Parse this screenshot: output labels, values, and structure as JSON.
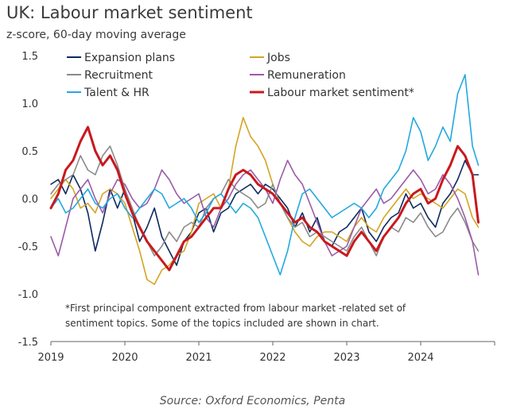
{
  "title": "UK: Labour market sentiment",
  "subtitle": "z-score, 60-day moving average",
  "source": "Source: Oxford Economics, Penta",
  "chart_data": {
    "type": "line",
    "ylim": [
      -1.5,
      1.5
    ],
    "yticks": [
      1.5,
      1.0,
      0.5,
      0.0,
      -0.5,
      -1.0,
      -1.5
    ],
    "ytick_labels": [
      "1.5",
      "1.0",
      "0.5",
      "0.0",
      "-0.5",
      "-1.0",
      "-1.5"
    ],
    "xlim": [
      2019.0,
      2025.0
    ],
    "xticks": [
      2019,
      2020,
      2021,
      2022,
      2023,
      2024
    ],
    "xtick_labels": [
      "2019",
      "2020",
      "2021",
      "2022",
      "2023",
      "2024"
    ],
    "grid": false,
    "legend_placement": "top",
    "note_lines": [
      "*First principal component extracted from labour market  -related set of",
      "sentiment topics. Some of the  topics included are shown in chart."
    ],
    "series": [
      {
        "name": "Expansion plans",
        "color": "#0b2a5e",
        "x": [
          2019.0,
          2019.1,
          2019.2,
          2019.3,
          2019.4,
          2019.5,
          2019.6,
          2019.7,
          2019.8,
          2019.9,
          2020.0,
          2020.1,
          2020.2,
          2020.3,
          2020.4,
          2020.5,
          2020.6,
          2020.7,
          2020.8,
          2020.9,
          2021.0,
          2021.1,
          2021.2,
          2021.3,
          2021.4,
          2021.5,
          2021.6,
          2021.7,
          2021.8,
          2021.9,
          2022.0,
          2022.1,
          2022.2,
          2022.3,
          2022.4,
          2022.5,
          2022.6,
          2022.7,
          2022.8,
          2022.9,
          2023.0,
          2023.1,
          2023.2,
          2023.3,
          2023.4,
          2023.5,
          2023.6,
          2023.7,
          2023.8,
          2023.9,
          2024.0,
          2024.1,
          2024.2,
          2024.3,
          2024.4,
          2024.5,
          2024.6,
          2024.7,
          2024.78
        ],
        "y": [
          0.15,
          0.2,
          0.05,
          0.25,
          0.1,
          -0.15,
          -0.55,
          -0.25,
          0.1,
          -0.1,
          0.1,
          -0.15,
          -0.45,
          -0.3,
          -0.1,
          -0.4,
          -0.55,
          -0.7,
          -0.45,
          -0.35,
          -0.15,
          -0.1,
          -0.35,
          -0.15,
          -0.1,
          0.05,
          0.1,
          0.15,
          0.05,
          0.15,
          0.1,
          0.0,
          -0.1,
          -0.3,
          -0.15,
          -0.35,
          -0.2,
          -0.45,
          -0.5,
          -0.35,
          -0.3,
          -0.2,
          -0.1,
          -0.35,
          -0.45,
          -0.3,
          -0.2,
          -0.15,
          0.05,
          -0.1,
          -0.05,
          -0.2,
          -0.3,
          -0.05,
          0.05,
          0.2,
          0.4,
          0.25,
          0.25
        ]
      },
      {
        "name": "Jobs",
        "color": "#d4a422",
        "x": [
          2019.0,
          2019.1,
          2019.2,
          2019.3,
          2019.4,
          2019.5,
          2019.6,
          2019.7,
          2019.8,
          2019.9,
          2020.0,
          2020.1,
          2020.2,
          2020.3,
          2020.4,
          2020.5,
          2020.6,
          2020.7,
          2020.8,
          2020.9,
          2021.0,
          2021.1,
          2021.2,
          2021.3,
          2021.4,
          2021.5,
          2021.6,
          2021.7,
          2021.8,
          2021.9,
          2022.0,
          2022.1,
          2022.2,
          2022.3,
          2022.4,
          2022.5,
          2022.6,
          2022.7,
          2022.8,
          2022.9,
          2023.0,
          2023.1,
          2023.2,
          2023.3,
          2023.4,
          2023.5,
          2023.6,
          2023.7,
          2023.8,
          2023.9,
          2024.0,
          2024.1,
          2024.2,
          2024.3,
          2024.4,
          2024.5,
          2024.6,
          2024.7,
          2024.78
        ],
        "y": [
          0.0,
          0.1,
          0.2,
          0.1,
          -0.1,
          -0.05,
          -0.15,
          0.05,
          0.1,
          0.05,
          -0.05,
          -0.3,
          -0.55,
          -0.85,
          -0.9,
          -0.75,
          -0.7,
          -0.6,
          -0.55,
          -0.35,
          -0.05,
          0.0,
          0.05,
          -0.1,
          0.1,
          0.55,
          0.85,
          0.65,
          0.55,
          0.4,
          0.15,
          -0.05,
          -0.2,
          -0.35,
          -0.45,
          -0.5,
          -0.4,
          -0.35,
          -0.35,
          -0.4,
          -0.45,
          -0.3,
          -0.2,
          -0.3,
          -0.35,
          -0.2,
          -0.1,
          0.0,
          0.1,
          0.0,
          0.05,
          0.0,
          -0.05,
          -0.1,
          0.0,
          0.1,
          0.05,
          -0.2,
          -0.3
        ]
      },
      {
        "name": "Recruitment",
        "color": "#8a8a8a",
        "x": [
          2019.0,
          2019.1,
          2019.2,
          2019.3,
          2019.4,
          2019.5,
          2019.6,
          2019.7,
          2019.8,
          2019.9,
          2020.0,
          2020.1,
          2020.2,
          2020.3,
          2020.4,
          2020.5,
          2020.6,
          2020.7,
          2020.8,
          2020.9,
          2021.0,
          2021.1,
          2021.2,
          2021.3,
          2021.4,
          2021.5,
          2021.6,
          2021.7,
          2021.8,
          2021.9,
          2022.0,
          2022.1,
          2022.2,
          2022.3,
          2022.4,
          2022.5,
          2022.6,
          2022.7,
          2022.8,
          2022.9,
          2023.0,
          2023.1,
          2023.2,
          2023.3,
          2023.4,
          2023.5,
          2023.6,
          2023.7,
          2023.8,
          2023.9,
          2024.0,
          2024.1,
          2024.2,
          2024.3,
          2024.4,
          2024.5,
          2024.6,
          2024.7,
          2024.78
        ],
        "y": [
          0.05,
          0.15,
          0.2,
          0.25,
          0.45,
          0.3,
          0.25,
          0.45,
          0.55,
          0.35,
          0.1,
          -0.1,
          -0.3,
          -0.45,
          -0.6,
          -0.5,
          -0.35,
          -0.45,
          -0.3,
          -0.25,
          -0.3,
          -0.1,
          0.0,
          0.05,
          0.2,
          0.1,
          0.05,
          0.0,
          -0.1,
          -0.05,
          0.15,
          -0.05,
          -0.2,
          -0.3,
          -0.25,
          -0.4,
          -0.35,
          -0.4,
          -0.45,
          -0.5,
          -0.55,
          -0.4,
          -0.3,
          -0.45,
          -0.6,
          -0.4,
          -0.3,
          -0.35,
          -0.2,
          -0.25,
          -0.15,
          -0.3,
          -0.4,
          -0.35,
          -0.2,
          -0.1,
          -0.25,
          -0.45,
          -0.55
        ]
      },
      {
        "name": "Remuneration",
        "color": "#9b5aa8",
        "x": [
          2019.0,
          2019.1,
          2019.2,
          2019.3,
          2019.4,
          2019.5,
          2019.6,
          2019.7,
          2019.8,
          2019.9,
          2020.0,
          2020.1,
          2020.2,
          2020.3,
          2020.4,
          2020.5,
          2020.6,
          2020.7,
          2020.8,
          2020.9,
          2021.0,
          2021.1,
          2021.2,
          2021.3,
          2021.4,
          2021.5,
          2021.6,
          2021.7,
          2021.8,
          2021.9,
          2022.0,
          2022.1,
          2022.2,
          2022.3,
          2022.4,
          2022.5,
          2022.6,
          2022.7,
          2022.8,
          2022.9,
          2023.0,
          2023.1,
          2023.2,
          2023.3,
          2023.4,
          2023.5,
          2023.6,
          2023.7,
          2023.8,
          2023.9,
          2024.0,
          2024.1,
          2024.2,
          2024.3,
          2024.4,
          2024.5,
          2024.6,
          2024.7,
          2024.78
        ],
        "y": [
          -0.4,
          -0.6,
          -0.3,
          0.0,
          0.1,
          0.2,
          0.0,
          -0.15,
          0.05,
          0.2,
          0.15,
          0.0,
          -0.1,
          -0.05,
          0.1,
          0.3,
          0.2,
          0.05,
          -0.05,
          0.0,
          0.05,
          -0.2,
          -0.3,
          -0.1,
          0.0,
          0.15,
          0.25,
          0.3,
          0.2,
          0.1,
          -0.05,
          0.2,
          0.4,
          0.25,
          0.15,
          -0.05,
          -0.25,
          -0.45,
          -0.6,
          -0.55,
          -0.5,
          -0.3,
          -0.1,
          0.0,
          0.1,
          -0.05,
          0.0,
          0.1,
          0.2,
          0.3,
          0.2,
          0.05,
          0.1,
          0.25,
          0.15,
          0.0,
          -0.2,
          -0.45,
          -0.8
        ]
      },
      {
        "name": "Talent & HR",
        "color": "#22a9df",
        "x": [
          2019.0,
          2019.1,
          2019.2,
          2019.3,
          2019.4,
          2019.5,
          2019.6,
          2019.7,
          2019.8,
          2019.9,
          2020.0,
          2020.1,
          2020.2,
          2020.3,
          2020.4,
          2020.5,
          2020.6,
          2020.7,
          2020.8,
          2020.9,
          2021.0,
          2021.1,
          2021.2,
          2021.3,
          2021.4,
          2021.5,
          2021.6,
          2021.7,
          2021.8,
          2021.9,
          2022.0,
          2022.1,
          2022.2,
          2022.3,
          2022.4,
          2022.5,
          2022.6,
          2022.7,
          2022.8,
          2022.9,
          2023.0,
          2023.1,
          2023.2,
          2023.3,
          2023.4,
          2023.5,
          2023.6,
          2023.7,
          2023.8,
          2023.9,
          2024.0,
          2024.1,
          2024.2,
          2024.3,
          2024.4,
          2024.5,
          2024.6,
          2024.7,
          2024.78
        ],
        "y": [
          -0.1,
          0.0,
          -0.15,
          -0.1,
          0.0,
          0.1,
          -0.05,
          -0.1,
          0.0,
          0.05,
          -0.1,
          -0.2,
          -0.1,
          0.0,
          0.1,
          0.05,
          -0.1,
          -0.05,
          0.0,
          -0.1,
          -0.25,
          -0.15,
          0.0,
          0.05,
          -0.05,
          -0.15,
          -0.05,
          -0.1,
          -0.2,
          -0.4,
          -0.6,
          -0.8,
          -0.55,
          -0.2,
          0.05,
          0.1,
          0.0,
          -0.1,
          -0.2,
          -0.15,
          -0.1,
          -0.05,
          -0.1,
          -0.2,
          -0.1,
          0.1,
          0.2,
          0.3,
          0.5,
          0.85,
          0.7,
          0.4,
          0.55,
          0.75,
          0.6,
          1.1,
          1.3,
          0.55,
          0.35
        ]
      },
      {
        "name": "Labour market sentiment*",
        "color": "#c8191e",
        "x": [
          2019.0,
          2019.1,
          2019.2,
          2019.3,
          2019.4,
          2019.5,
          2019.6,
          2019.7,
          2019.8,
          2019.9,
          2020.0,
          2020.1,
          2020.2,
          2020.3,
          2020.4,
          2020.5,
          2020.6,
          2020.7,
          2020.8,
          2020.9,
          2021.0,
          2021.1,
          2021.2,
          2021.3,
          2021.4,
          2021.5,
          2021.6,
          2021.7,
          2021.8,
          2021.9,
          2022.0,
          2022.1,
          2022.2,
          2022.3,
          2022.4,
          2022.5,
          2022.6,
          2022.7,
          2022.8,
          2022.9,
          2023.0,
          2023.1,
          2023.2,
          2023.3,
          2023.4,
          2023.5,
          2023.6,
          2023.7,
          2023.8,
          2023.9,
          2024.0,
          2024.1,
          2024.2,
          2024.3,
          2024.4,
          2024.5,
          2024.6,
          2024.7,
          2024.78
        ],
        "y": [
          -0.1,
          0.05,
          0.3,
          0.4,
          0.6,
          0.75,
          0.5,
          0.35,
          0.45,
          0.3,
          0.05,
          -0.15,
          -0.3,
          -0.45,
          -0.55,
          -0.65,
          -0.75,
          -0.6,
          -0.45,
          -0.4,
          -0.3,
          -0.2,
          -0.1,
          -0.1,
          0.1,
          0.25,
          0.3,
          0.25,
          0.15,
          0.1,
          0.05,
          -0.05,
          -0.15,
          -0.25,
          -0.2,
          -0.3,
          -0.35,
          -0.45,
          -0.5,
          -0.55,
          -0.6,
          -0.45,
          -0.35,
          -0.45,
          -0.55,
          -0.4,
          -0.3,
          -0.2,
          -0.05,
          0.05,
          0.1,
          -0.05,
          0.0,
          0.2,
          0.35,
          0.55,
          0.45,
          0.25,
          -0.25
        ]
      }
    ]
  }
}
